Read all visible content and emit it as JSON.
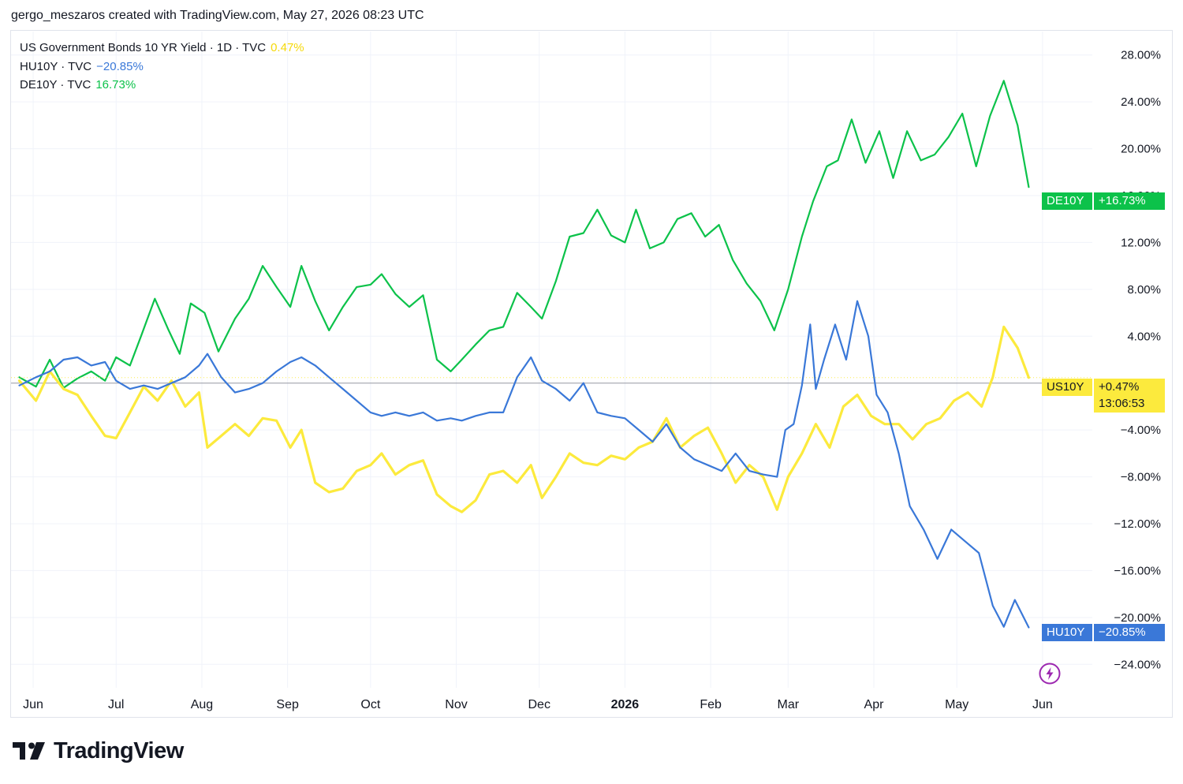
{
  "caption": "gergo_meszaros created with TradingView.com, May 27, 2026 08:23 UTC",
  "brand": "TradingView",
  "legend": [
    {
      "label": "US Government Bonds 10 YR Yield · 1D · TVC",
      "value": "0.47%",
      "color": "#f5d90a"
    },
    {
      "label": "HU10Y · TVC",
      "value": "−20.85%",
      "color": "#3a78d8"
    },
    {
      "label": "DE10Y · TVC",
      "value": "16.73%",
      "color": "#0cc24a"
    }
  ],
  "price_tags": {
    "de": {
      "symbol": "DE10Y",
      "value": "+16.73%",
      "color": "#0cc24a"
    },
    "us": {
      "symbol": "US10Y",
      "value": "+0.47%",
      "countdown": "13:06:53",
      "color": "#fcea3d"
    },
    "hu": {
      "symbol": "HU10Y",
      "value": "−20.85%",
      "color": "#3a78d8"
    }
  },
  "chart_data": {
    "type": "line",
    "yunit": "%",
    "ylim": [
      -26,
      30
    ],
    "yticks": [
      28,
      24,
      20,
      16,
      12,
      8,
      4,
      -4,
      -8,
      -12,
      -16,
      -20,
      -24
    ],
    "ytick_labels": [
      "28.00%",
      "24.00%",
      "20.00%",
      "16.00%",
      "12.00%",
      "8.00%",
      "4.00%",
      "−4.00%",
      "−8.00%",
      "−12.00%",
      "−16.00%",
      "−20.00%",
      "−24.00%"
    ],
    "x_ticks": [
      {
        "date": "2025-06-01",
        "label": "Jun"
      },
      {
        "date": "2025-07-01",
        "label": "Jul"
      },
      {
        "date": "2025-08-01",
        "label": "Aug"
      },
      {
        "date": "2025-09-01",
        "label": "Sep"
      },
      {
        "date": "2025-10-01",
        "label": "Oct"
      },
      {
        "date": "2025-11-01",
        "label": "Nov"
      },
      {
        "date": "2025-12-01",
        "label": "Dec"
      },
      {
        "date": "2026-01-01",
        "label": "2026",
        "bold": true
      },
      {
        "date": "2026-02-01",
        "label": "Feb"
      },
      {
        "date": "2026-03-01",
        "label": "Mar"
      },
      {
        "date": "2026-04-01",
        "label": "Apr"
      },
      {
        "date": "2026-05-01",
        "label": "May"
      },
      {
        "date": "2026-06-01",
        "label": "Jun"
      }
    ],
    "xlim": [
      "2025-05-24",
      "2026-06-19"
    ],
    "baseline": 0,
    "series": [
      {
        "name": "DE10Y",
        "color": "#0cc24a",
        "points": [
          [
            "2025-05-27",
            0.5
          ],
          [
            "2025-06-02",
            -0.3
          ],
          [
            "2025-06-07",
            2
          ],
          [
            "2025-06-12",
            -0.4
          ],
          [
            "2025-06-17",
            0.4
          ],
          [
            "2025-06-22",
            1
          ],
          [
            "2025-06-27",
            0.2
          ],
          [
            "2025-07-01",
            2.2
          ],
          [
            "2025-07-06",
            1.5
          ],
          [
            "2025-07-10",
            4
          ],
          [
            "2025-07-15",
            7.2
          ],
          [
            "2025-07-20",
            4.5
          ],
          [
            "2025-07-24",
            2.5
          ],
          [
            "2025-07-28",
            6.8
          ],
          [
            "2025-08-02",
            6
          ],
          [
            "2025-08-07",
            2.7
          ],
          [
            "2025-08-13",
            5.5
          ],
          [
            "2025-08-18",
            7.2
          ],
          [
            "2025-08-23",
            10
          ],
          [
            "2025-08-28",
            8.2
          ],
          [
            "2025-09-02",
            6.5
          ],
          [
            "2025-09-06",
            10
          ],
          [
            "2025-09-11",
            7
          ],
          [
            "2025-09-16",
            4.5
          ],
          [
            "2025-09-21",
            6.5
          ],
          [
            "2025-09-26",
            8.2
          ],
          [
            "2025-10-01",
            8.4
          ],
          [
            "2025-10-05",
            9.3
          ],
          [
            "2025-10-10",
            7.6
          ],
          [
            "2025-10-15",
            6.5
          ],
          [
            "2025-10-20",
            7.5
          ],
          [
            "2025-10-25",
            2
          ],
          [
            "2025-10-30",
            1
          ],
          [
            "2025-11-03",
            2
          ],
          [
            "2025-11-08",
            3.3
          ],
          [
            "2025-11-13",
            4.5
          ],
          [
            "2025-11-18",
            4.8
          ],
          [
            "2025-11-23",
            7.7
          ],
          [
            "2025-11-28",
            6.5
          ],
          [
            "2025-12-02",
            5.5
          ],
          [
            "2025-12-07",
            8.7
          ],
          [
            "2025-12-12",
            12.5
          ],
          [
            "2025-12-17",
            12.8
          ],
          [
            "2025-12-22",
            14.8
          ],
          [
            "2025-12-27",
            12.6
          ],
          [
            "2026-01-01",
            12
          ],
          [
            "2026-01-05",
            14.8
          ],
          [
            "2026-01-10",
            11.5
          ],
          [
            "2026-01-15",
            12
          ],
          [
            "2026-01-20",
            14
          ],
          [
            "2026-01-25",
            14.5
          ],
          [
            "2026-01-30",
            12.5
          ],
          [
            "2026-02-04",
            13.5
          ],
          [
            "2026-02-09",
            10.5
          ],
          [
            "2026-02-14",
            8.5
          ],
          [
            "2026-02-19",
            7
          ],
          [
            "2026-02-24",
            4.5
          ],
          [
            "2026-03-01",
            8
          ],
          [
            "2026-03-06",
            12.5
          ],
          [
            "2026-03-10",
            15.5
          ],
          [
            "2026-03-15",
            18.5
          ],
          [
            "2026-03-19",
            19
          ],
          [
            "2026-03-24",
            22.5
          ],
          [
            "2026-03-29",
            18.8
          ],
          [
            "2026-04-03",
            21.5
          ],
          [
            "2026-04-08",
            17.5
          ],
          [
            "2026-04-13",
            21.5
          ],
          [
            "2026-04-18",
            19
          ],
          [
            "2026-04-23",
            19.5
          ],
          [
            "2026-04-28",
            21
          ],
          [
            "2026-05-03",
            23
          ],
          [
            "2026-05-08",
            18.5
          ],
          [
            "2026-05-13",
            22.8
          ],
          [
            "2026-05-18",
            25.8
          ],
          [
            "2026-05-23",
            22
          ],
          [
            "2026-05-27",
            16.73
          ]
        ]
      },
      {
        "name": "US10Y",
        "color": "#fcea3d",
        "points": [
          [
            "2025-05-27",
            0.2
          ],
          [
            "2025-06-02",
            -1.5
          ],
          [
            "2025-06-07",
            1
          ],
          [
            "2025-06-12",
            -0.5
          ],
          [
            "2025-06-17",
            -1
          ],
          [
            "2025-06-22",
            -2.8
          ],
          [
            "2025-06-27",
            -4.5
          ],
          [
            "2025-07-01",
            -4.7
          ],
          [
            "2025-07-06",
            -2.5
          ],
          [
            "2025-07-11",
            -0.3
          ],
          [
            "2025-07-16",
            -1.5
          ],
          [
            "2025-07-21",
            0.2
          ],
          [
            "2025-07-26",
            -2
          ],
          [
            "2025-07-31",
            -0.8
          ],
          [
            "2025-08-03",
            -5.5
          ],
          [
            "2025-08-08",
            -4.5
          ],
          [
            "2025-08-13",
            -3.5
          ],
          [
            "2025-08-18",
            -4.5
          ],
          [
            "2025-08-23",
            -3
          ],
          [
            "2025-08-28",
            -3.2
          ],
          [
            "2025-09-02",
            -5.5
          ],
          [
            "2025-09-06",
            -4
          ],
          [
            "2025-09-11",
            -8.5
          ],
          [
            "2025-09-16",
            -9.3
          ],
          [
            "2025-09-21",
            -9
          ],
          [
            "2025-09-26",
            -7.5
          ],
          [
            "2025-10-01",
            -7
          ],
          [
            "2025-10-05",
            -6
          ],
          [
            "2025-10-10",
            -7.8
          ],
          [
            "2025-10-15",
            -7
          ],
          [
            "2025-10-20",
            -6.6
          ],
          [
            "2025-10-25",
            -9.5
          ],
          [
            "2025-10-30",
            -10.5
          ],
          [
            "2025-11-03",
            -11
          ],
          [
            "2025-11-08",
            -10
          ],
          [
            "2025-11-13",
            -7.8
          ],
          [
            "2025-11-18",
            -7.5
          ],
          [
            "2025-11-23",
            -8.5
          ],
          [
            "2025-11-28",
            -7
          ],
          [
            "2025-12-02",
            -9.8
          ],
          [
            "2025-12-07",
            -8
          ],
          [
            "2025-12-12",
            -6
          ],
          [
            "2025-12-17",
            -6.8
          ],
          [
            "2025-12-22",
            -7
          ],
          [
            "2025-12-27",
            -6.2
          ],
          [
            "2026-01-01",
            -6.5
          ],
          [
            "2026-01-06",
            -5.5
          ],
          [
            "2026-01-11",
            -5
          ],
          [
            "2026-01-16",
            -3
          ],
          [
            "2026-01-21",
            -5.5
          ],
          [
            "2026-01-26",
            -4.5
          ],
          [
            "2026-01-31",
            -3.8
          ],
          [
            "2026-02-05",
            -6
          ],
          [
            "2026-02-10",
            -8.5
          ],
          [
            "2026-02-15",
            -7
          ],
          [
            "2026-02-20",
            -8
          ],
          [
            "2026-02-25",
            -10.8
          ],
          [
            "2026-03-01",
            -8
          ],
          [
            "2026-03-06",
            -6
          ],
          [
            "2026-03-11",
            -3.5
          ],
          [
            "2026-03-16",
            -5.5
          ],
          [
            "2026-03-21",
            -2
          ],
          [
            "2026-03-26",
            -1
          ],
          [
            "2026-03-31",
            -2.8
          ],
          [
            "2026-04-05",
            -3.5
          ],
          [
            "2026-04-10",
            -3.5
          ],
          [
            "2026-04-15",
            -4.8
          ],
          [
            "2026-04-20",
            -3.5
          ],
          [
            "2026-04-25",
            -3
          ],
          [
            "2026-04-30",
            -1.5
          ],
          [
            "2026-05-05",
            -0.8
          ],
          [
            "2026-05-10",
            -2
          ],
          [
            "2026-05-14",
            0.5
          ],
          [
            "2026-05-18",
            4.8
          ],
          [
            "2026-05-23",
            3
          ],
          [
            "2026-05-27",
            0.47
          ]
        ]
      },
      {
        "name": "HU10Y",
        "color": "#3a78d8",
        "points": [
          [
            "2025-05-27",
            -0.2
          ],
          [
            "2025-06-02",
            0.5
          ],
          [
            "2025-06-07",
            1
          ],
          [
            "2025-06-12",
            2
          ],
          [
            "2025-06-17",
            2.2
          ],
          [
            "2025-06-22",
            1.5
          ],
          [
            "2025-06-27",
            1.8
          ],
          [
            "2025-07-01",
            0.2
          ],
          [
            "2025-07-06",
            -0.5
          ],
          [
            "2025-07-11",
            -0.2
          ],
          [
            "2025-07-16",
            -0.5
          ],
          [
            "2025-07-21",
            0
          ],
          [
            "2025-07-26",
            0.5
          ],
          [
            "2025-07-31",
            1.5
          ],
          [
            "2025-08-03",
            2.5
          ],
          [
            "2025-08-08",
            0.5
          ],
          [
            "2025-08-13",
            -0.8
          ],
          [
            "2025-08-18",
            -0.5
          ],
          [
            "2025-08-23",
            0
          ],
          [
            "2025-08-28",
            1
          ],
          [
            "2025-09-02",
            1.8
          ],
          [
            "2025-09-06",
            2.2
          ],
          [
            "2025-09-11",
            1.5
          ],
          [
            "2025-09-16",
            0.5
          ],
          [
            "2025-09-21",
            -0.5
          ],
          [
            "2025-09-26",
            -1.5
          ],
          [
            "2025-10-01",
            -2.5
          ],
          [
            "2025-10-05",
            -2.8
          ],
          [
            "2025-10-10",
            -2.5
          ],
          [
            "2025-10-15",
            -2.8
          ],
          [
            "2025-10-20",
            -2.5
          ],
          [
            "2025-10-25",
            -3.2
          ],
          [
            "2025-10-30",
            -3
          ],
          [
            "2025-11-03",
            -3.2
          ],
          [
            "2025-11-08",
            -2.8
          ],
          [
            "2025-11-13",
            -2.5
          ],
          [
            "2025-11-18",
            -2.5
          ],
          [
            "2025-11-23",
            0.5
          ],
          [
            "2025-11-28",
            2.2
          ],
          [
            "2025-12-02",
            0.2
          ],
          [
            "2025-12-07",
            -0.5
          ],
          [
            "2025-12-12",
            -1.5
          ],
          [
            "2025-12-17",
            0
          ],
          [
            "2025-12-22",
            -2.5
          ],
          [
            "2025-12-27",
            -2.8
          ],
          [
            "2026-01-01",
            -3
          ],
          [
            "2026-01-06",
            -4
          ],
          [
            "2026-01-11",
            -5
          ],
          [
            "2026-01-16",
            -3.5
          ],
          [
            "2026-01-21",
            -5.5
          ],
          [
            "2026-01-26",
            -6.5
          ],
          [
            "2026-01-31",
            -7
          ],
          [
            "2026-02-05",
            -7.5
          ],
          [
            "2026-02-10",
            -6
          ],
          [
            "2026-02-15",
            -7.5
          ],
          [
            "2026-02-20",
            -7.8
          ],
          [
            "2026-02-25",
            -8
          ],
          [
            "2026-02-28",
            -4
          ],
          [
            "2026-03-03",
            -3.5
          ],
          [
            "2026-03-06",
            -0.2
          ],
          [
            "2026-03-09",
            5
          ],
          [
            "2026-03-11",
            -0.5
          ],
          [
            "2026-03-14",
            2
          ],
          [
            "2026-03-18",
            5
          ],
          [
            "2026-03-22",
            2
          ],
          [
            "2026-03-26",
            7
          ],
          [
            "2026-03-30",
            4
          ],
          [
            "2026-04-02",
            -1
          ],
          [
            "2026-04-06",
            -2.5
          ],
          [
            "2026-04-10",
            -6
          ],
          [
            "2026-04-14",
            -10.5
          ],
          [
            "2026-04-19",
            -12.5
          ],
          [
            "2026-04-24",
            -15
          ],
          [
            "2026-04-29",
            -12.5
          ],
          [
            "2026-05-04",
            -13.5
          ],
          [
            "2026-05-09",
            -14.5
          ],
          [
            "2026-05-14",
            -19
          ],
          [
            "2026-05-18",
            -20.8
          ],
          [
            "2026-05-22",
            -18.5
          ],
          [
            "2026-05-27",
            -20.85
          ]
        ]
      }
    ]
  }
}
